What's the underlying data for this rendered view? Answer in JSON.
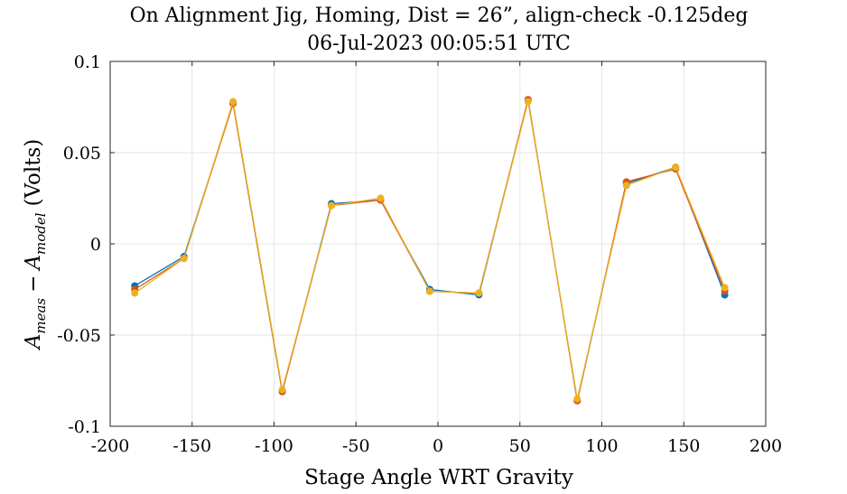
{
  "chart_data": {
    "type": "line",
    "title": "On Alignment Jig, Homing, Dist = 26”, align-check -0.125deg",
    "subtitle": "06-Jul-2023 00:05:51 UTC",
    "xlabel": "Stage Angle WRT Gravity",
    "ylabel_main": "A",
    "ylabel_sub1": "meas",
    "ylabel_minus": "−",
    "ylabel_sub2": "model",
    "ylabel_unit": "(Volts)",
    "xlim": [
      -200,
      200
    ],
    "ylim": [
      -0.1,
      0.1
    ],
    "grid": true,
    "xticks": [
      -200,
      -150,
      -100,
      -50,
      0,
      50,
      100,
      150,
      200
    ],
    "xtick_labels": [
      "-200",
      "-150",
      "-100",
      "-50",
      "0",
      "50",
      "100",
      "150",
      "200"
    ],
    "yticks": [
      -0.1,
      -0.05,
      0,
      0.05,
      0.1
    ],
    "ytick_labels": [
      "-0.1",
      "-0.05",
      "0",
      "0.05",
      "0.1"
    ],
    "x": [
      -185,
      -155,
      -125,
      -95,
      -65,
      -35,
      -5,
      25,
      55,
      85,
      115,
      145,
      175
    ],
    "series": [
      {
        "color": "#0072BD",
        "values": [
          -0.023,
          -0.007,
          0.077,
          -0.081,
          0.022,
          0.024,
          -0.025,
          -0.028,
          0.079,
          -0.086,
          0.033,
          0.042,
          -0.028
        ]
      },
      {
        "color": "#D95319",
        "values": [
          -0.025,
          -0.008,
          0.077,
          -0.081,
          0.021,
          0.024,
          -0.026,
          -0.027,
          0.079,
          -0.086,
          0.034,
          0.041,
          -0.026
        ]
      },
      {
        "color": "#EDB120",
        "values": [
          -0.027,
          -0.008,
          0.078,
          -0.08,
          0.021,
          0.025,
          -0.026,
          -0.027,
          0.078,
          -0.085,
          0.032,
          0.042,
          -0.024
        ]
      }
    ]
  }
}
